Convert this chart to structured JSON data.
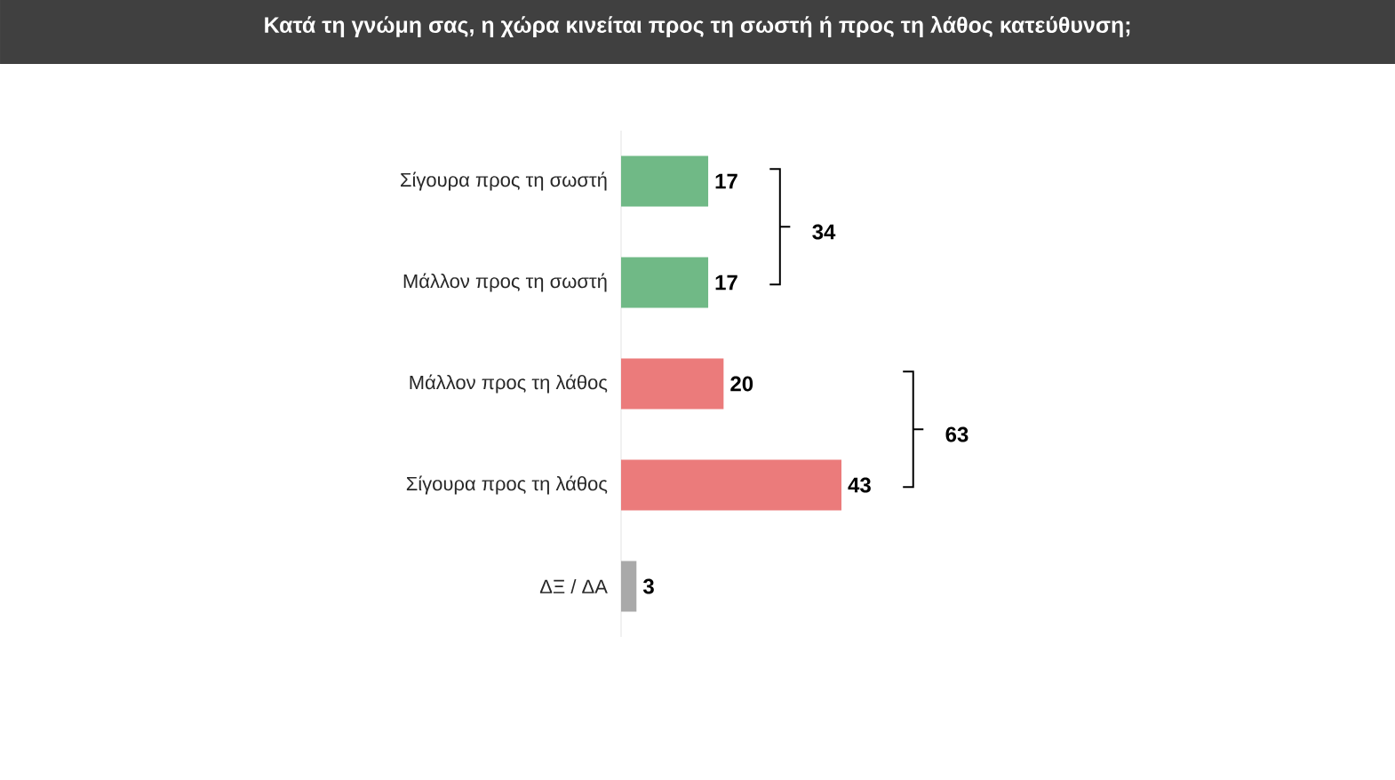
{
  "chart_data": {
    "type": "bar",
    "orientation": "horizontal",
    "title": "Κατά τη γνώμη σας, η χώρα κινείται προς τη σωστή ή προς τη λάθος κατεύθυνση;",
    "categories": [
      "Σίγουρα προς τη σωστή",
      "Μάλλον προς τη σωστή",
      "Μάλλον προς τη λάθος",
      "Σίγουρα προς τη λάθος",
      "ΔΞ / ΔΑ"
    ],
    "values": [
      17,
      17,
      20,
      43,
      3
    ],
    "colors": [
      "#70b986",
      "#70b986",
      "#eb7b7b",
      "#eb7b7b",
      "#a9a9a9"
    ],
    "data_labels": true,
    "annotations": [
      "34",
      "63"
    ]
  }
}
